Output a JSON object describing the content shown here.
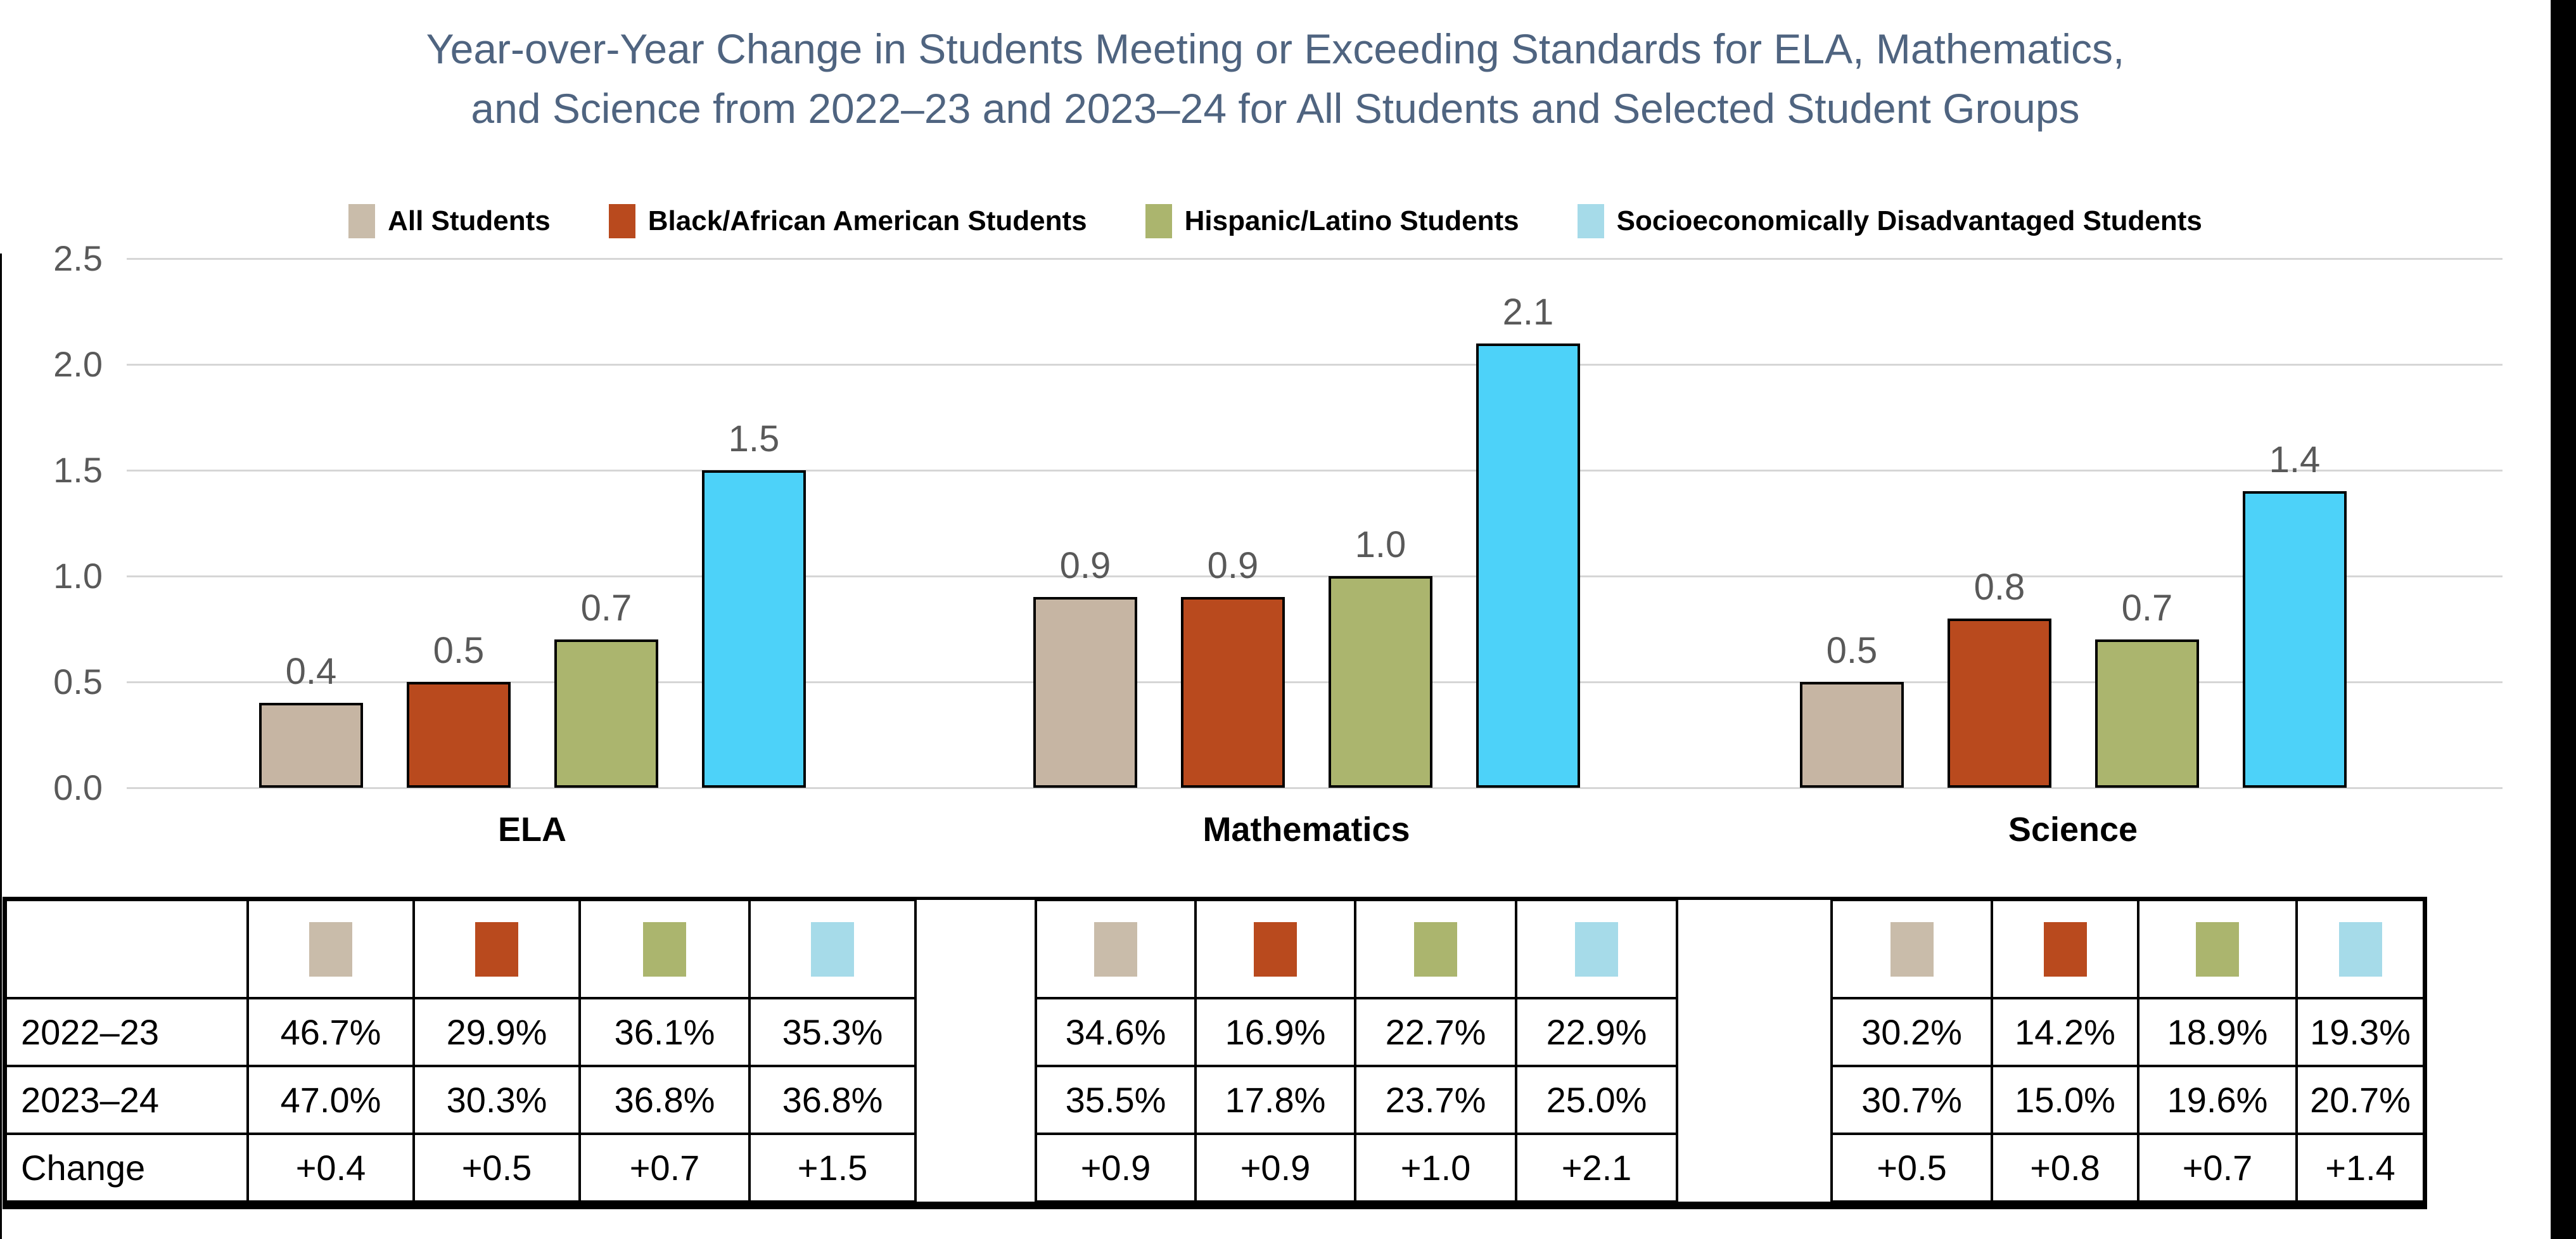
{
  "header": {
    "title_line1": "Year-over-Year Change in Students Meeting or Exceeding Standards for ELA, Mathematics,",
    "title_line2": "and Science from 2022–23 and 2023–24 for All Students and Selected Student Groups"
  },
  "colors": {
    "title_text": "#4F6480",
    "axis_text": "#595959",
    "gridline": "#D6D6D6",
    "bar_outline": "#000000",
    "edge_bar": "#000000"
  },
  "chart_data": {
    "type": "bar",
    "title": "Year-over-Year Change in Students Meeting or Exceeding Standards for ELA, Mathematics, and Science from 2022–23 and 2023–24 for All Students and Selected Student Groups",
    "categories": [
      "ELA",
      "Mathematics",
      "Science"
    ],
    "series": [
      {
        "name": "All Students",
        "color": "#C6B5A3",
        "legend_color": "#C9BCAA",
        "values": [
          0.4,
          0.9,
          0.5
        ]
      },
      {
        "name": "Black/African American Students",
        "color": "#B94A1E",
        "legend_color": "#B94A1E",
        "values": [
          0.5,
          0.9,
          0.8
        ]
      },
      {
        "name": "Hispanic/Latino Students",
        "color": "#ABB56E",
        "legend_color": "#ABB56E",
        "values": [
          0.7,
          1.0,
          0.7
        ]
      },
      {
        "name": "Socioeconomically Disadvantaged Students",
        "color": "#4DD2F9",
        "legend_color": "#A6DBE9",
        "values": [
          1.5,
          2.1,
          1.4
        ]
      }
    ],
    "data_labels": [
      [
        "0.4",
        "0.5",
        "0.7",
        "1.5"
      ],
      [
        "0.9",
        "0.9",
        "1.0",
        "2.1"
      ],
      [
        "0.5",
        "0.8",
        "0.7",
        "1.4"
      ]
    ],
    "ylim": [
      0,
      2.5
    ],
    "y_ticks": [
      "2.5",
      "2.0",
      "1.5",
      "1.0",
      "0.5",
      "0.0"
    ],
    "grid": true,
    "legend_position": "top"
  },
  "table": {
    "row_labels": [
      "2022–23",
      "2023–24",
      "Change"
    ],
    "groups": [
      {
        "category": "ELA",
        "columns": [
          {
            "swatch_color": "#C9BCAA",
            "values": [
              "46.7%",
              "47.0%",
              "+0.4"
            ]
          },
          {
            "swatch_color": "#B94A1E",
            "values": [
              "29.9%",
              "30.3%",
              "+0.5"
            ]
          },
          {
            "swatch_color": "#ABB56E",
            "values": [
              "36.1%",
              "36.8%",
              "+0.7"
            ]
          },
          {
            "swatch_color": "#A6DBE9",
            "values": [
              "35.3%",
              "36.8%",
              "+1.5"
            ]
          }
        ]
      },
      {
        "category": "Mathematics",
        "columns": [
          {
            "swatch_color": "#C9BCAA",
            "values": [
              "34.6%",
              "35.5%",
              "+0.9"
            ]
          },
          {
            "swatch_color": "#B94A1E",
            "values": [
              "16.9%",
              "17.8%",
              "+0.9"
            ]
          },
          {
            "swatch_color": "#ABB56E",
            "values": [
              "22.7%",
              "23.7%",
              "+1.0"
            ]
          },
          {
            "swatch_color": "#A6DBE9",
            "values": [
              "22.9%",
              "25.0%",
              "+2.1"
            ]
          }
        ]
      },
      {
        "category": "Science",
        "columns": [
          {
            "swatch_color": "#C9BCAA",
            "values": [
              "30.2%",
              "30.7%",
              "+0.5"
            ]
          },
          {
            "swatch_color": "#B94A1E",
            "values": [
              "14.2%",
              "15.0%",
              "+0.8"
            ]
          },
          {
            "swatch_color": "#ABB56E",
            "values": [
              "18.9%",
              "19.6%",
              "+0.7"
            ]
          },
          {
            "swatch_color": "#A6DBE9",
            "values": [
              "19.3%",
              "20.7%",
              "+1.4"
            ]
          }
        ]
      }
    ]
  }
}
